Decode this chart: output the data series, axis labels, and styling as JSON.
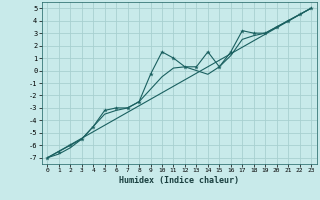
{
  "xlabel": "Humidex (Indice chaleur)",
  "bg_color": "#c8eaea",
  "grid_color": "#a8d0d0",
  "line_color": "#1a6060",
  "xlim": [
    -0.5,
    23.5
  ],
  "ylim": [
    -7.5,
    5.5
  ],
  "xticks": [
    0,
    1,
    2,
    3,
    4,
    5,
    6,
    7,
    8,
    9,
    10,
    11,
    12,
    13,
    14,
    15,
    16,
    17,
    18,
    19,
    20,
    21,
    22,
    23
  ],
  "yticks": [
    -7,
    -6,
    -5,
    -4,
    -3,
    -2,
    -1,
    0,
    1,
    2,
    3,
    4,
    5
  ],
  "x_zigzag": [
    0,
    1,
    2,
    3,
    4,
    5,
    6,
    7,
    8,
    9,
    10,
    11,
    12,
    13,
    14,
    15,
    16,
    17,
    18,
    19,
    20,
    21,
    22,
    23
  ],
  "y_zigzag": [
    -7.0,
    -6.5,
    -6.0,
    -5.5,
    -4.5,
    -3.2,
    -3.0,
    -3.0,
    -2.5,
    -0.3,
    1.5,
    1.0,
    0.3,
    0.3,
    1.5,
    0.3,
    1.5,
    3.2,
    3.0,
    3.0,
    3.5,
    4.0,
    4.5,
    5.0
  ],
  "x_smooth": [
    0,
    1,
    2,
    3,
    4,
    5,
    6,
    7,
    8,
    9,
    10,
    11,
    12,
    13,
    14,
    15,
    16,
    17,
    18,
    19,
    20,
    21,
    22,
    23
  ],
  "y_smooth": [
    -7.0,
    -6.7,
    -6.2,
    -5.5,
    -4.5,
    -3.5,
    -3.2,
    -3.0,
    -2.5,
    -1.5,
    -0.5,
    0.2,
    0.3,
    0.0,
    -0.3,
    0.3,
    1.2,
    2.5,
    2.8,
    3.0,
    3.5,
    4.0,
    4.5,
    5.0
  ]
}
